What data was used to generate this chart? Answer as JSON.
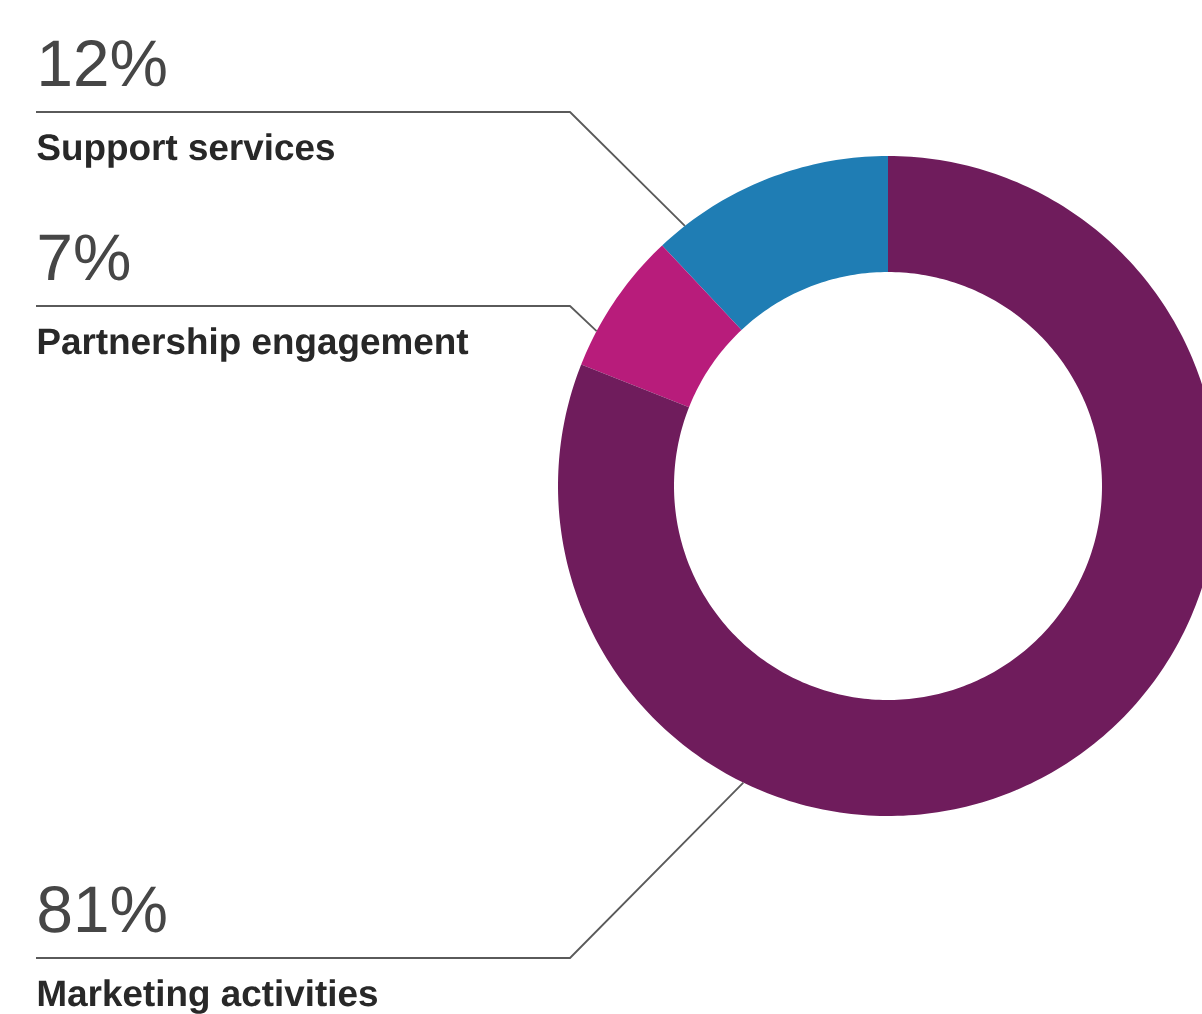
{
  "chart_data": {
    "type": "donut",
    "categories": [
      "Support services",
      "Partnership engagement",
      "Marketing activities"
    ],
    "values": [
      12,
      7,
      81
    ],
    "value_labels": [
      "12%",
      "7%",
      "81%"
    ],
    "colors": [
      "#1f7db4",
      "#b81c7b",
      "#6f1c5c"
    ]
  }
}
